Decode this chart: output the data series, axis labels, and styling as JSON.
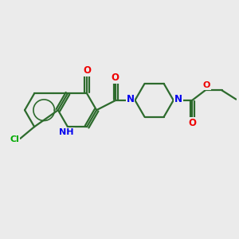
{
  "background_color": "#ebebeb",
  "bond_color": "#2d6b2d",
  "bond_width": 1.6,
  "atom_colors": {
    "N": "#0000ee",
    "O": "#ee0000",
    "Cl": "#00aa00",
    "H_label": "#0000ee"
  },
  "font_size_atoms": 8.5,
  "font_size_small": 7.5
}
